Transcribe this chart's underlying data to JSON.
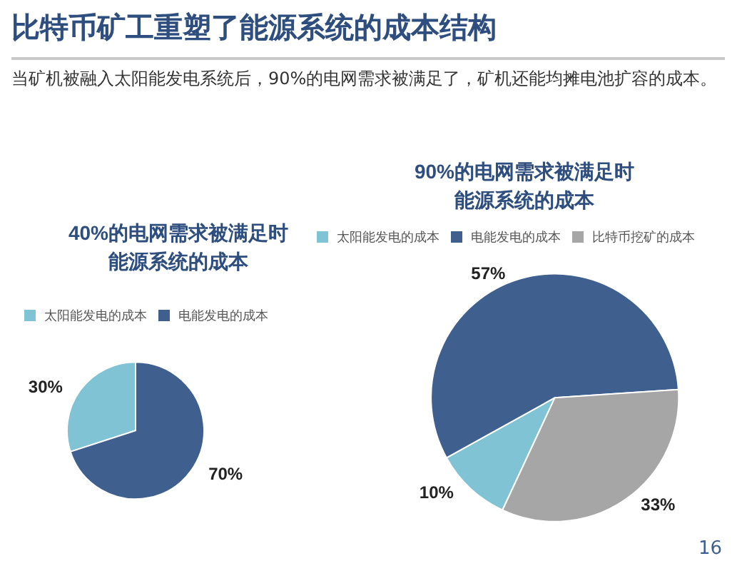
{
  "chart_data": [
    {
      "type": "other",
      "title": "比特币矿工重塑了能源系统的成本结构",
      "subtitle": "当矿机被融入太阳能发电系统后，90%的电网需求被满足了，矿机还能均摊电池扩容的成本。",
      "annotations": [
        "16"
      ]
    },
    {
      "type": "pie",
      "title": "40%的电网需求被满足时能源系统的成本",
      "categories": [
        "太阳能发电的成本",
        "电能发电的成本"
      ],
      "values": [
        30,
        70
      ],
      "colors": [
        "#7fc3d4",
        "#3f5f8e"
      ],
      "value_labels": [
        "30%",
        "70%"
      ],
      "legend": "top"
    },
    {
      "type": "pie",
      "title": "90%的电网需求被满足时能源系统的成本",
      "categories": [
        "太阳能发电的成本",
        "电能发电的成本",
        "比特币挖矿的成本"
      ],
      "values": [
        10,
        57,
        33
      ],
      "colors": [
        "#7fc3d4",
        "#3f5f8e",
        "#a6a6a6"
      ],
      "value_labels": [
        "10%",
        "57%",
        "33%"
      ],
      "legend": "top"
    }
  ]
}
